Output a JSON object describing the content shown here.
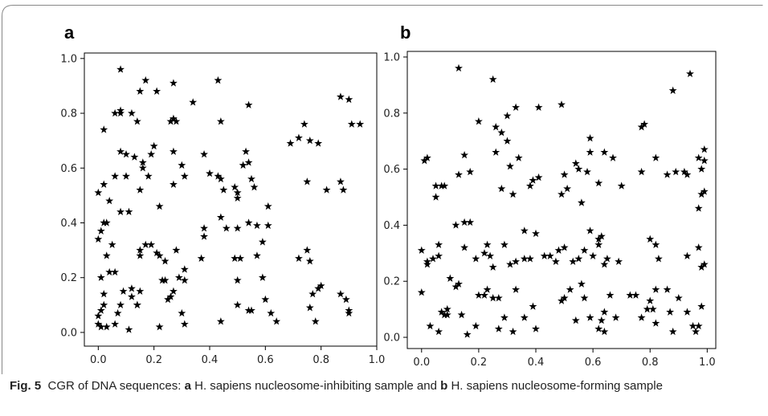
{
  "caption": {
    "label": "Fig. 5",
    "text_1": "CGR of DNA sequences: ",
    "a_letter": "a",
    "text_2": " H. sapiens nucleosome-inhibiting sample and ",
    "b_letter": "b",
    "text_3": " H. sapiens nucleosome-forming sample"
  },
  "colors": {
    "marker": "#000000",
    "axis": "#000000",
    "frame_border": "#888888"
  },
  "chart_data": [
    {
      "type": "scatter",
      "panel": "a",
      "marker": "star",
      "xlim": [
        -0.05,
        1.0
      ],
      "ylim": [
        -0.05,
        1.02
      ],
      "xticks": [
        "0.0",
        "0.2",
        "0.4",
        "0.6",
        "0.8",
        "1.0"
      ],
      "yticks": [
        "0.0",
        "0.2",
        "0.4",
        "0.6",
        "0.8",
        "1.0"
      ],
      "grid": false,
      "points": [
        [
          0.08,
          0.96
        ],
        [
          0.17,
          0.92
        ],
        [
          0.27,
          0.91
        ],
        [
          0.43,
          0.92
        ],
        [
          0.21,
          0.88
        ],
        [
          0.15,
          0.88
        ],
        [
          0.34,
          0.84
        ],
        [
          0.54,
          0.83
        ],
        [
          0.06,
          0.8
        ],
        [
          0.08,
          0.8
        ],
        [
          0.08,
          0.81
        ],
        [
          0.12,
          0.8
        ],
        [
          0.02,
          0.74
        ],
        [
          0.14,
          0.77
        ],
        [
          0.26,
          0.77
        ],
        [
          0.27,
          0.78
        ],
        [
          0.28,
          0.77
        ],
        [
          0.44,
          0.77
        ],
        [
          0.69,
          0.69
        ],
        [
          0.72,
          0.71
        ],
        [
          0.74,
          0.76
        ],
        [
          0.76,
          0.7
        ],
        [
          0.79,
          0.69
        ],
        [
          0.87,
          0.86
        ],
        [
          0.9,
          0.85
        ],
        [
          0.91,
          0.76
        ],
        [
          0.94,
          0.76
        ],
        [
          0.08,
          0.66
        ],
        [
          0.1,
          0.65
        ],
        [
          0.13,
          0.64
        ],
        [
          0.19,
          0.65
        ],
        [
          0.2,
          0.68
        ],
        [
          0.3,
          0.61
        ],
        [
          0.27,
          0.66
        ],
        [
          0.38,
          0.65
        ],
        [
          0.06,
          0.57
        ],
        [
          0.1,
          0.57
        ],
        [
          0.16,
          0.6
        ],
        [
          0.16,
          0.62
        ],
        [
          0.18,
          0.57
        ],
        [
          0.27,
          0.54
        ],
        [
          0.31,
          0.57
        ],
        [
          0.4,
          0.58
        ],
        [
          0.43,
          0.57
        ],
        [
          0.44,
          0.56
        ],
        [
          0.45,
          0.52
        ],
        [
          0.49,
          0.53
        ],
        [
          0.5,
          0.51
        ],
        [
          0.5,
          0.49
        ],
        [
          0.52,
          0.61
        ],
        [
          0.53,
          0.66
        ],
        [
          0.54,
          0.62
        ],
        [
          0.55,
          0.56
        ],
        [
          0.56,
          0.53
        ],
        [
          0.61,
          0.46
        ],
        [
          0.75,
          0.55
        ],
        [
          0.82,
          0.52
        ],
        [
          0.87,
          0.55
        ],
        [
          0.88,
          0.52
        ],
        [
          0.0,
          0.51
        ],
        [
          0.02,
          0.54
        ],
        [
          0.04,
          0.48
        ],
        [
          0.08,
          0.44
        ],
        [
          0.11,
          0.44
        ],
        [
          0.15,
          0.52
        ],
        [
          0.22,
          0.46
        ],
        [
          0.02,
          0.4
        ],
        [
          0.03,
          0.4
        ],
        [
          0.01,
          0.37
        ],
        [
          0.0,
          0.34
        ],
        [
          0.05,
          0.32
        ],
        [
          0.03,
          0.28
        ],
        [
          0.44,
          0.42
        ],
        [
          0.46,
          0.38
        ],
        [
          0.5,
          0.38
        ],
        [
          0.54,
          0.4
        ],
        [
          0.57,
          0.39
        ],
        [
          0.59,
          0.33
        ],
        [
          0.61,
          0.39
        ],
        [
          0.38,
          0.38
        ],
        [
          0.38,
          0.35
        ],
        [
          0.37,
          0.27
        ],
        [
          0.15,
          0.3
        ],
        [
          0.15,
          0.28
        ],
        [
          0.17,
          0.32
        ],
        [
          0.19,
          0.32
        ],
        [
          0.21,
          0.29
        ],
        [
          0.22,
          0.28
        ],
        [
          0.23,
          0.19
        ],
        [
          0.24,
          0.19
        ],
        [
          0.24,
          0.26
        ],
        [
          0.28,
          0.3
        ],
        [
          0.31,
          0.23
        ],
        [
          0.29,
          0.2
        ],
        [
          0.31,
          0.19
        ],
        [
          0.01,
          0.2
        ],
        [
          0.04,
          0.22
        ],
        [
          0.06,
          0.22
        ],
        [
          0.09,
          0.15
        ],
        [
          0.12,
          0.16
        ],
        [
          0.12,
          0.13
        ],
        [
          0.14,
          0.1
        ],
        [
          0.15,
          0.15
        ],
        [
          0.02,
          0.14
        ],
        [
          0.02,
          0.1
        ],
        [
          0.01,
          0.08
        ],
        [
          0.0,
          0.06
        ],
        [
          0.0,
          0.03
        ],
        [
          0.01,
          0.02
        ],
        [
          0.03,
          0.02
        ],
        [
          0.06,
          0.03
        ],
        [
          0.07,
          0.07
        ],
        [
          0.08,
          0.1
        ],
        [
          0.11,
          0.01
        ],
        [
          0.14,
          0.1
        ],
        [
          0.22,
          0.02
        ],
        [
          0.25,
          0.12
        ],
        [
          0.26,
          0.13
        ],
        [
          0.27,
          0.15
        ],
        [
          0.3,
          0.07
        ],
        [
          0.31,
          0.03
        ],
        [
          0.44,
          0.04
        ],
        [
          0.49,
          0.27
        ],
        [
          0.5,
          0.19
        ],
        [
          0.51,
          0.27
        ],
        [
          0.5,
          0.1
        ],
        [
          0.54,
          0.08
        ],
        [
          0.55,
          0.08
        ],
        [
          0.57,
          0.28
        ],
        [
          0.59,
          0.2
        ],
        [
          0.6,
          0.12
        ],
        [
          0.62,
          0.07
        ],
        [
          0.64,
          0.04
        ],
        [
          0.72,
          0.27
        ],
        [
          0.75,
          0.3
        ],
        [
          0.76,
          0.26
        ],
        [
          0.76,
          0.09
        ],
        [
          0.77,
          0.14
        ],
        [
          0.78,
          0.04
        ],
        [
          0.79,
          0.16
        ],
        [
          0.8,
          0.17
        ],
        [
          0.87,
          0.14
        ],
        [
          0.89,
          0.12
        ],
        [
          0.9,
          0.08
        ],
        [
          0.9,
          0.07
        ]
      ]
    },
    {
      "type": "scatter",
      "panel": "b",
      "marker": "star",
      "xlim": [
        -0.05,
        1.03
      ],
      "ylim": [
        -0.04,
        1.02
      ],
      "xticks": [
        "0.0",
        "0.2",
        "0.4",
        "0.6",
        "0.8",
        "1.0"
      ],
      "yticks": [
        "0.0",
        "0.2",
        "0.4",
        "0.6",
        "0.8",
        "1.0"
      ],
      "grid": false,
      "points": [
        [
          0.13,
          0.96
        ],
        [
          0.25,
          0.92
        ],
        [
          0.94,
          0.94
        ],
        [
          0.88,
          0.88
        ],
        [
          0.33,
          0.82
        ],
        [
          0.41,
          0.82
        ],
        [
          0.49,
          0.83
        ],
        [
          0.3,
          0.79
        ],
        [
          0.26,
          0.75
        ],
        [
          0.28,
          0.73
        ],
        [
          0.2,
          0.77
        ],
        [
          0.59,
          0.71
        ],
        [
          0.59,
          0.66
        ],
        [
          0.64,
          0.66
        ],
        [
          0.54,
          0.62
        ],
        [
          0.01,
          0.63
        ],
        [
          0.02,
          0.64
        ],
        [
          0.05,
          0.54
        ],
        [
          0.07,
          0.54
        ],
        [
          0.08,
          0.54
        ],
        [
          0.05,
          0.5
        ],
        [
          0.13,
          0.58
        ],
        [
          0.17,
          0.59
        ],
        [
          0.15,
          0.65
        ],
        [
          0.26,
          0.66
        ],
        [
          0.28,
          0.53
        ],
        [
          0.3,
          0.7
        ],
        [
          0.31,
          0.61
        ],
        [
          0.32,
          0.51
        ],
        [
          0.34,
          0.64
        ],
        [
          0.38,
          0.54
        ],
        [
          0.39,
          0.56
        ],
        [
          0.41,
          0.57
        ],
        [
          0.5,
          0.58
        ],
        [
          0.49,
          0.51
        ],
        [
          0.51,
          0.53
        ],
        [
          0.55,
          0.6
        ],
        [
          0.56,
          0.48
        ],
        [
          0.58,
          0.59
        ],
        [
          0.62,
          0.55
        ],
        [
          0.67,
          0.64
        ],
        [
          0.7,
          0.54
        ],
        [
          0.77,
          0.59
        ],
        [
          0.77,
          0.75
        ],
        [
          0.78,
          0.76
        ],
        [
          0.82,
          0.64
        ],
        [
          0.86,
          0.58
        ],
        [
          0.89,
          0.59
        ],
        [
          0.92,
          0.59
        ],
        [
          0.93,
          0.58
        ],
        [
          0.97,
          0.64
        ],
        [
          0.98,
          0.6
        ],
        [
          0.99,
          0.67
        ],
        [
          0.99,
          0.63
        ],
        [
          0.99,
          0.52
        ],
        [
          0.98,
          0.51
        ],
        [
          0.97,
          0.46
        ],
        [
          0.0,
          0.31
        ],
        [
          0.02,
          0.26
        ],
        [
          0.02,
          0.27
        ],
        [
          0.04,
          0.28
        ],
        [
          0.06,
          0.33
        ],
        [
          0.06,
          0.29
        ],
        [
          0.12,
          0.4
        ],
        [
          0.15,
          0.41
        ],
        [
          0.15,
          0.32
        ],
        [
          0.17,
          0.41
        ],
        [
          0.19,
          0.28
        ],
        [
          0.22,
          0.3
        ],
        [
          0.24,
          0.29
        ],
        [
          0.23,
          0.33
        ],
        [
          0.25,
          0.25
        ],
        [
          0.29,
          0.33
        ],
        [
          0.31,
          0.26
        ],
        [
          0.33,
          0.27
        ],
        [
          0.36,
          0.28
        ],
        [
          0.36,
          0.38
        ],
        [
          0.38,
          0.28
        ],
        [
          0.4,
          0.37
        ],
        [
          0.43,
          0.29
        ],
        [
          0.45,
          0.29
        ],
        [
          0.47,
          0.27
        ],
        [
          0.48,
          0.31
        ],
        [
          0.5,
          0.32
        ],
        [
          0.53,
          0.27
        ],
        [
          0.55,
          0.28
        ],
        [
          0.57,
          0.31
        ],
        [
          0.59,
          0.38
        ],
        [
          0.6,
          0.29
        ],
        [
          0.62,
          0.33
        ],
        [
          0.62,
          0.35
        ],
        [
          0.63,
          0.36
        ],
        [
          0.64,
          0.26
        ],
        [
          0.65,
          0.28
        ],
        [
          0.69,
          0.27
        ],
        [
          0.8,
          0.35
        ],
        [
          0.82,
          0.33
        ],
        [
          0.83,
          0.28
        ],
        [
          0.93,
          0.29
        ],
        [
          0.97,
          0.32
        ],
        [
          0.98,
          0.25
        ],
        [
          0.99,
          0.26
        ],
        [
          0.0,
          0.16
        ],
        [
          0.03,
          0.04
        ],
        [
          0.06,
          0.02
        ],
        [
          0.07,
          0.09
        ],
        [
          0.08,
          0.08
        ],
        [
          0.09,
          0.08
        ],
        [
          0.09,
          0.1
        ],
        [
          0.1,
          0.21
        ],
        [
          0.12,
          0.18
        ],
        [
          0.13,
          0.19
        ],
        [
          0.14,
          0.08
        ],
        [
          0.16,
          0.01
        ],
        [
          0.19,
          0.04
        ],
        [
          0.2,
          0.15
        ],
        [
          0.22,
          0.15
        ],
        [
          0.23,
          0.17
        ],
        [
          0.25,
          0.14
        ],
        [
          0.27,
          0.03
        ],
        [
          0.27,
          0.14
        ],
        [
          0.29,
          0.07
        ],
        [
          0.32,
          0.02
        ],
        [
          0.33,
          0.17
        ],
        [
          0.36,
          0.07
        ],
        [
          0.39,
          0.11
        ],
        [
          0.4,
          0.03
        ],
        [
          0.49,
          0.13
        ],
        [
          0.5,
          0.14
        ],
        [
          0.52,
          0.17
        ],
        [
          0.54,
          0.06
        ],
        [
          0.56,
          0.19
        ],
        [
          0.57,
          0.14
        ],
        [
          0.59,
          0.07
        ],
        [
          0.62,
          0.03
        ],
        [
          0.63,
          0.06
        ],
        [
          0.64,
          0.02
        ],
        [
          0.64,
          0.09
        ],
        [
          0.66,
          0.15
        ],
        [
          0.68,
          0.07
        ],
        [
          0.73,
          0.15
        ],
        [
          0.75,
          0.15
        ],
        [
          0.77,
          0.07
        ],
        [
          0.79,
          0.1
        ],
        [
          0.8,
          0.13
        ],
        [
          0.81,
          0.1
        ],
        [
          0.82,
          0.17
        ],
        [
          0.82,
          0.05
        ],
        [
          0.86,
          0.17
        ],
        [
          0.87,
          0.09
        ],
        [
          0.88,
          0.02
        ],
        [
          0.9,
          0.14
        ],
        [
          0.93,
          0.09
        ],
        [
          0.95,
          0.04
        ],
        [
          0.96,
          0.02
        ],
        [
          0.97,
          0.04
        ],
        [
          0.98,
          0.11
        ]
      ]
    }
  ]
}
